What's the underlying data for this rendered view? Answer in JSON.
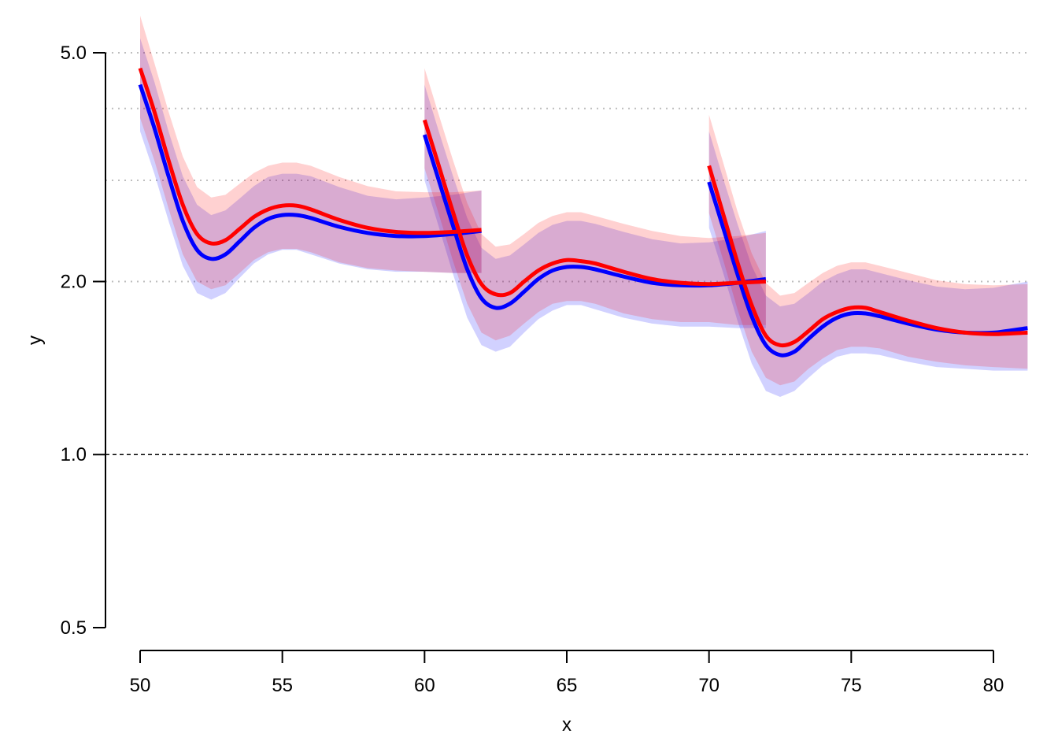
{
  "chart_data": {
    "type": "line",
    "xlabel": "x",
    "ylabel": "y",
    "xlim": [
      48.8,
      81.2
    ],
    "ylim": [
      0.5,
      5.0
    ],
    "y_scale": "log",
    "x_ticks": [
      {
        "value": 50,
        "label": "50"
      },
      {
        "value": 55,
        "label": "55"
      },
      {
        "value": 60,
        "label": "60"
      },
      {
        "value": 65,
        "label": "65"
      },
      {
        "value": 70,
        "label": "70"
      },
      {
        "value": 75,
        "label": "75"
      },
      {
        "value": 80,
        "label": "80"
      }
    ],
    "y_ticks": [
      {
        "value": 0.5,
        "label": "0.5"
      },
      {
        "value": 1.0,
        "label": "1.0"
      },
      {
        "value": 2.0,
        "label": "2.0"
      },
      {
        "value": 5.0,
        "label": "5.0"
      }
    ],
    "grid_y": [
      2.0,
      3.0,
      4.0,
      5.0
    ],
    "reference_line": 1.0,
    "colors": {
      "blue_line": "#0000ff",
      "red_line": "#ff0000",
      "blue_band": "rgba(0,0,255,0.18)",
      "red_band": "rgba(255,0,0,0.18)",
      "grid": "#bebebe",
      "axis": "#000000"
    },
    "series": [
      {
        "color": "blue",
        "segments": [
          {
            "x": [
              50,
              50.5,
              51,
              51.5,
              52,
              52.5,
              53,
              53.5,
              54,
              54.5,
              55,
              55.5,
              56,
              57,
              58,
              59,
              60,
              61,
              62
            ],
            "y": [
              4.4,
              3.7,
              3.05,
              2.55,
              2.27,
              2.19,
              2.23,
              2.35,
              2.48,
              2.57,
              2.61,
              2.61,
              2.58,
              2.49,
              2.43,
              2.4,
              2.4,
              2.42,
              2.45
            ],
            "lower": [
              3.65,
              3.08,
              2.55,
              2.13,
              1.91,
              1.86,
              1.91,
              2.03,
              2.15,
              2.23,
              2.27,
              2.27,
              2.23,
              2.15,
              2.1,
              2.08,
              2.08,
              2.07,
              2.07
            ],
            "upper": [
              5.3,
              4.45,
              3.65,
              3.05,
              2.72,
              2.61,
              2.66,
              2.79,
              2.93,
              3.04,
              3.08,
              3.08,
              3.05,
              2.92,
              2.82,
              2.78,
              2.8,
              2.83,
              2.88
            ]
          },
          {
            "x": [
              60,
              60.5,
              61,
              61.5,
              62,
              62.5,
              63,
              63.5,
              64,
              64.5,
              65,
              65.5,
              66,
              67,
              68,
              69,
              70,
              71,
              72
            ],
            "y": [
              3.6,
              3.0,
              2.5,
              2.1,
              1.87,
              1.8,
              1.83,
              1.92,
              2.02,
              2.09,
              2.12,
              2.12,
              2.1,
              2.04,
              1.99,
              1.97,
              1.97,
              1.99,
              2.02
            ],
            "lower": [
              3.0,
              2.49,
              2.06,
              1.73,
              1.55,
              1.51,
              1.54,
              1.63,
              1.72,
              1.78,
              1.82,
              1.82,
              1.79,
              1.73,
              1.69,
              1.67,
              1.67,
              1.66,
              1.66
            ],
            "upper": [
              4.4,
              3.65,
              3.05,
              2.58,
              2.29,
              2.19,
              2.22,
              2.32,
              2.43,
              2.51,
              2.55,
              2.55,
              2.52,
              2.44,
              2.37,
              2.33,
              2.34,
              2.38,
              2.45
            ]
          },
          {
            "x": [
              70,
              70.5,
              71,
              71.5,
              72,
              72.5,
              73,
              73.5,
              74,
              74.5,
              75,
              75.5,
              76,
              77,
              78,
              79,
              80,
              81.2
            ],
            "y": [
              2.98,
              2.48,
              2.06,
              1.74,
              1.55,
              1.49,
              1.51,
              1.59,
              1.67,
              1.73,
              1.76,
              1.76,
              1.74,
              1.69,
              1.65,
              1.63,
              1.63,
              1.66
            ],
            "lower": [
              2.48,
              2.07,
              1.71,
              1.44,
              1.29,
              1.26,
              1.29,
              1.36,
              1.43,
              1.48,
              1.5,
              1.5,
              1.49,
              1.45,
              1.42,
              1.41,
              1.4,
              1.4
            ],
            "upper": [
              3.65,
              3.02,
              2.52,
              2.13,
              1.89,
              1.81,
              1.83,
              1.91,
              2.0,
              2.06,
              2.1,
              2.1,
              2.07,
              2.01,
              1.96,
              1.94,
              1.95,
              2.0
            ]
          }
        ]
      },
      {
        "color": "red",
        "segments": [
          {
            "x": [
              50,
              50.5,
              51,
              51.5,
              52,
              52.5,
              53,
              53.5,
              54,
              54.5,
              55,
              55.5,
              56,
              57,
              58,
              59,
              60,
              61,
              62
            ],
            "y": [
              4.7,
              3.95,
              3.25,
              2.72,
              2.42,
              2.33,
              2.36,
              2.47,
              2.59,
              2.67,
              2.71,
              2.71,
              2.67,
              2.56,
              2.48,
              2.44,
              2.43,
              2.44,
              2.46
            ],
            "lower": [
              3.85,
              3.25,
              2.68,
              2.23,
              2.0,
              1.94,
              1.97,
              2.07,
              2.18,
              2.25,
              2.28,
              2.28,
              2.25,
              2.16,
              2.11,
              2.09,
              2.08,
              2.07,
              2.07
            ],
            "upper": [
              5.8,
              4.8,
              3.95,
              3.3,
              2.92,
              2.8,
              2.83,
              2.96,
              3.09,
              3.18,
              3.22,
              3.22,
              3.18,
              3.04,
              2.93,
              2.87,
              2.86,
              2.86,
              2.88
            ]
          },
          {
            "x": [
              60,
              60.5,
              61,
              61.5,
              62,
              62.5,
              63,
              63.5,
              64,
              64.5,
              65,
              65.5,
              66,
              67,
              68,
              69,
              70,
              71,
              72
            ],
            "y": [
              3.82,
              3.18,
              2.64,
              2.22,
              1.98,
              1.9,
              1.91,
              2.0,
              2.09,
              2.15,
              2.18,
              2.17,
              2.15,
              2.08,
              2.02,
              1.99,
              1.98,
              1.99,
              2.0
            ],
            "lower": [
              3.15,
              2.62,
              2.17,
              1.83,
              1.63,
              1.58,
              1.61,
              1.69,
              1.77,
              1.83,
              1.85,
              1.85,
              1.83,
              1.76,
              1.72,
              1.7,
              1.7,
              1.68,
              1.68
            ],
            "upper": [
              4.7,
              3.9,
              3.25,
              2.74,
              2.42,
              2.3,
              2.32,
              2.42,
              2.53,
              2.6,
              2.64,
              2.64,
              2.6,
              2.52,
              2.45,
              2.4,
              2.38,
              2.4,
              2.43
            ]
          },
          {
            "x": [
              70,
              70.5,
              71,
              71.5,
              72,
              72.5,
              73,
              73.5,
              74,
              74.5,
              75,
              75.5,
              76,
              77,
              78,
              79,
              80,
              81.2
            ],
            "y": [
              3.18,
              2.62,
              2.16,
              1.82,
              1.61,
              1.55,
              1.57,
              1.64,
              1.72,
              1.77,
              1.8,
              1.8,
              1.77,
              1.71,
              1.66,
              1.63,
              1.62,
              1.63
            ],
            "lower": [
              2.63,
              2.18,
              1.79,
              1.51,
              1.36,
              1.32,
              1.34,
              1.41,
              1.47,
              1.52,
              1.54,
              1.54,
              1.53,
              1.48,
              1.45,
              1.43,
              1.42,
              1.41
            ],
            "upper": [
              3.9,
              3.22,
              2.65,
              2.24,
              1.99,
              1.89,
              1.91,
              1.99,
              2.07,
              2.13,
              2.16,
              2.16,
              2.13,
              2.07,
              2.01,
              1.98,
              1.97,
              1.98
            ]
          }
        ]
      }
    ]
  }
}
